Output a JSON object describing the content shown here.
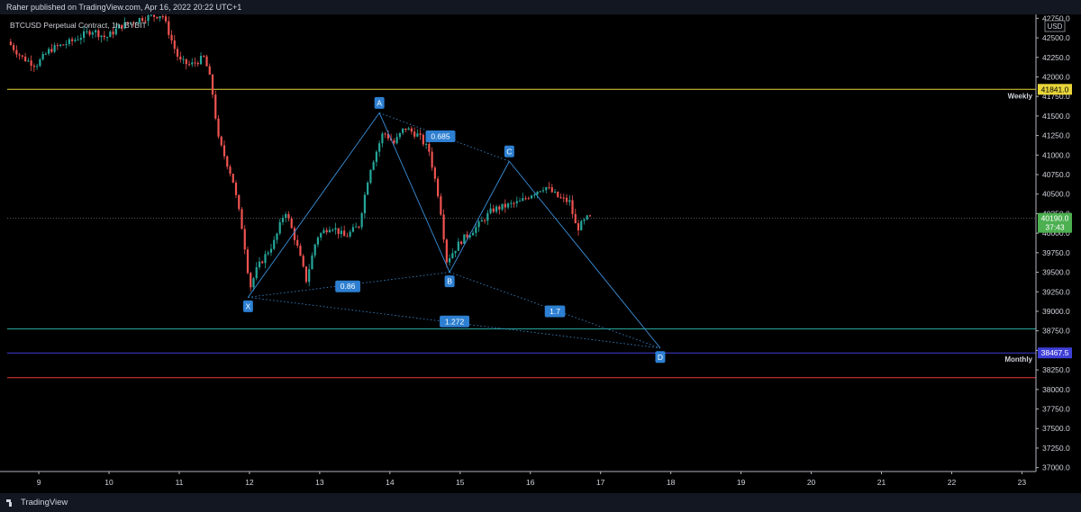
{
  "header": {
    "published_text": "Raher published on TradingView.com, Apr 16, 2022 20:22 UTC+1"
  },
  "footer": {
    "brand": "TradingView"
  },
  "chart_data": {
    "type": "candlestick",
    "symbol_label": "BTCUSD Perpetual Contract, 1h, BYBIT",
    "currency_label": "USD",
    "y_axis": {
      "ylim": [
        36950,
        42800
      ],
      "ticks": [
        "37000.0",
        "37250.0",
        "37500.0",
        "37750.0",
        "38000.0",
        "38250.0",
        "38500.0",
        "38750.0",
        "39000.0",
        "39250.0",
        "39500.0",
        "39750.0",
        "40000.0",
        "40250.0",
        "40500.0",
        "40750.0",
        "41000.0",
        "41250.0",
        "41500.0",
        "41750.0",
        "42000.0",
        "42250.0",
        "42500.0",
        "42750.0"
      ]
    },
    "x_axis": {
      "range_days": [
        8.55,
        23.2
      ],
      "ticks": [
        {
          "label": "9",
          "day": 9
        },
        {
          "label": "10",
          "day": 10
        },
        {
          "label": "11",
          "day": 11
        },
        {
          "label": "12",
          "day": 12
        },
        {
          "label": "13",
          "day": 13
        },
        {
          "label": "14",
          "day": 14
        },
        {
          "label": "15",
          "day": 15
        },
        {
          "label": "16",
          "day": 16
        },
        {
          "label": "17",
          "day": 17
        },
        {
          "label": "18",
          "day": 18
        },
        {
          "label": "19",
          "day": 19
        },
        {
          "label": "20",
          "day": 20
        },
        {
          "label": "21",
          "day": 21
        },
        {
          "label": "22",
          "day": 22
        },
        {
          "label": "23",
          "day": 23
        }
      ]
    },
    "price_path": [
      [
        8.6,
        42450
      ],
      [
        8.8,
        42250
      ],
      [
        9.0,
        42150
      ],
      [
        9.2,
        42350
      ],
      [
        9.5,
        42450
      ],
      [
        9.8,
        42600
      ],
      [
        10.0,
        42500
      ],
      [
        10.2,
        42650
      ],
      [
        10.5,
        42750
      ],
      [
        10.8,
        42800
      ],
      [
        11.0,
        42300
      ],
      [
        11.05,
        42200
      ],
      [
        11.2,
        42150
      ],
      [
        11.4,
        42250
      ],
      [
        11.5,
        41900
      ],
      [
        11.6,
        41200
      ],
      [
        11.8,
        40700
      ],
      [
        11.95,
        40000
      ],
      [
        12.05,
        39300
      ],
      [
        12.15,
        39550
      ],
      [
        12.4,
        39900
      ],
      [
        12.55,
        40300
      ],
      [
        12.7,
        39900
      ],
      [
        12.85,
        39400
      ],
      [
        13.0,
        39950
      ],
      [
        13.2,
        40100
      ],
      [
        13.4,
        39950
      ],
      [
        13.6,
        40100
      ],
      [
        13.75,
        40800
      ],
      [
        13.95,
        41300
      ],
      [
        14.1,
        41150
      ],
      [
        14.25,
        41350
      ],
      [
        14.45,
        41250
      ],
      [
        14.6,
        41050
      ],
      [
        14.75,
        40400
      ],
      [
        14.85,
        39650
      ],
      [
        15.05,
        39900
      ],
      [
        15.3,
        40100
      ],
      [
        15.5,
        40300
      ],
      [
        15.7,
        40350
      ],
      [
        15.9,
        40400
      ],
      [
        16.05,
        40500
      ],
      [
        16.25,
        40600
      ],
      [
        16.45,
        40450
      ],
      [
        16.6,
        40400
      ],
      [
        16.7,
        40050
      ],
      [
        16.85,
        40190
      ]
    ],
    "horizontal_lines": [
      {
        "name": "weekly",
        "price": 41841.0,
        "color": "#e8d53a",
        "label": "Weekly",
        "price_label": "41841.0"
      },
      {
        "name": "green-level",
        "price": 38775,
        "color": "#26a69a"
      },
      {
        "name": "monthly",
        "price": 38467.5,
        "color": "#3f3fd8",
        "label": "Monthly",
        "price_label": "38467.5"
      },
      {
        "name": "red-level",
        "price": 38150,
        "color": "#e53935"
      }
    ],
    "current_price": {
      "price": 40190.0,
      "label": "40190.0",
      "countdown": "37:43",
      "color": "#4caf50"
    },
    "pattern": {
      "color": "#3a8fd9",
      "points": [
        {
          "label": "X",
          "day": 11.98,
          "price": 39180
        },
        {
          "label": "A",
          "day": 13.85,
          "price": 41540
        },
        {
          "label": "B",
          "day": 14.85,
          "price": 39500
        },
        {
          "label": "C",
          "day": 15.7,
          "price": 40920
        },
        {
          "label": "D",
          "day": 17.85,
          "price": 38530
        }
      ],
      "ratios": [
        {
          "label": "0.685",
          "day": 14.72,
          "price": 41240
        },
        {
          "label": "0.86",
          "day": 13.4,
          "price": 39320
        },
        {
          "label": "1.7",
          "day": 16.35,
          "price": 39000
        },
        {
          "label": "1.272",
          "day": 14.92,
          "price": 38870
        }
      ]
    }
  }
}
